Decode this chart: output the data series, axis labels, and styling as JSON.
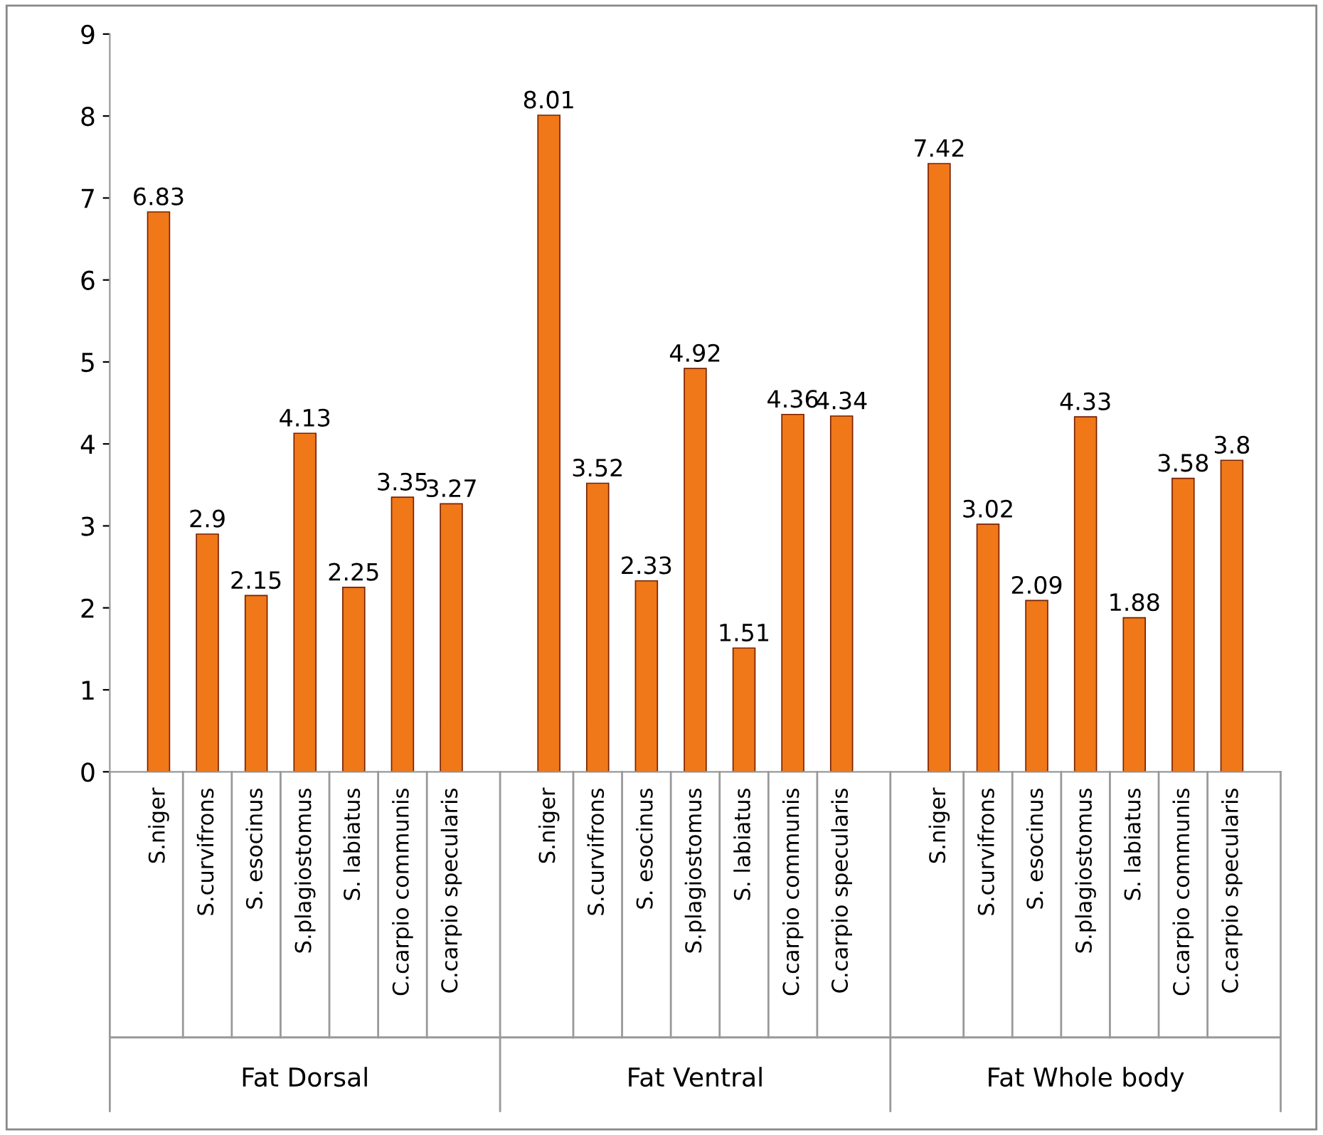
{
  "chart_data": {
    "type": "bar",
    "categories": [
      "S.niger",
      "S.curvifrons",
      "S. esocinus",
      "S.plagiostomus",
      "S. labiatus",
      "C.carpio communis",
      "C.carpio specularis",
      "S.niger",
      "S.curvifrons",
      "S. esocinus",
      "S.plagiostomus",
      "S. labiatus",
      "C.carpio communis",
      "C.carpio specularis",
      "S.niger",
      "S.curvifrons",
      "S. esocinus",
      "S.plagiostomus",
      "S. labiatus",
      "C.carpio communis",
      "C.carpio specularis"
    ],
    "values": [
      6.83,
      2.9,
      2.15,
      4.13,
      2.25,
      3.35,
      3.27,
      8.01,
      3.52,
      2.33,
      4.92,
      1.51,
      4.36,
      4.34,
      7.42,
      3.02,
      2.09,
      4.33,
      1.88,
      3.58,
      3.8
    ],
    "value_labels": [
      "6.83",
      "2.9",
      "2.15",
      "4.13",
      "2.25",
      "3.35",
      "3.27",
      "8.01",
      "3.52",
      "2.33",
      "4.92",
      "1.51",
      "4.36",
      "4.34",
      "7.42",
      "3.02",
      "2.09",
      "4.33",
      "1.88",
      "3.58",
      "3.8"
    ],
    "color": "#f07818",
    "annotations": [
      "Fat Dorsal",
      "Fat Ventral",
      "Fat Whole body"
    ],
    "ylim": [
      0,
      9
    ],
    "yticks": [
      0,
      1,
      2,
      3,
      4,
      5,
      6,
      7,
      8,
      9
    ],
    "grid": false
  }
}
